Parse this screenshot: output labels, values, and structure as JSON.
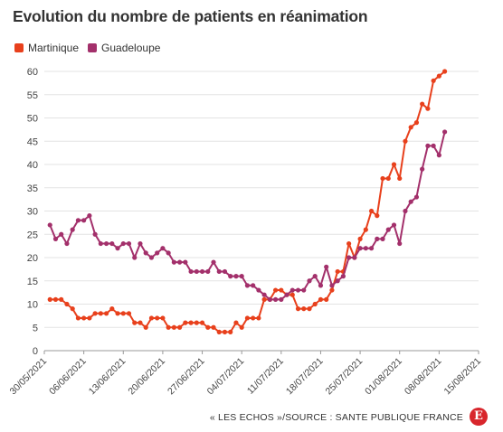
{
  "title": "Evolution du nombre de patients en réanimation",
  "source": "« LES ECHOS »/SOURCE : SANTE PUBLIQUE FRANCE",
  "logo_letter": "E",
  "chart_data": {
    "type": "line",
    "title": "Evolution du nombre de patients en réanimation",
    "xlabel": "",
    "ylabel": "",
    "ylim": [
      0,
      60
    ],
    "yticks": [
      0,
      5,
      10,
      15,
      20,
      25,
      30,
      35,
      40,
      45,
      50,
      55,
      60
    ],
    "xrange": [
      "2021-05-30",
      "2021-08-15"
    ],
    "xticks": [
      "30/05/2021",
      "06/06/2021",
      "13/06/2021",
      "20/06/2021",
      "27/06/2021",
      "04/07/2021",
      "11/07/2021",
      "18/07/2021",
      "25/07/2021",
      "01/08/2021",
      "08/08/2021",
      "15/08/2021"
    ],
    "grid": true,
    "legend_position": "top-left",
    "series": [
      {
        "name": "Martinique",
        "color": "#e8401c",
        "start_date": "2021-05-31",
        "values": [
          11,
          11,
          11,
          10,
          9,
          7,
          7,
          7,
          8,
          8,
          8,
          9,
          8,
          8,
          8,
          6,
          6,
          5,
          7,
          7,
          7,
          5,
          5,
          5,
          6,
          6,
          6,
          6,
          5,
          5,
          4,
          4,
          4,
          6,
          5,
          7,
          7,
          7,
          11,
          11,
          13,
          13,
          12,
          12,
          9,
          9,
          9,
          10,
          11,
          11,
          13,
          17,
          17,
          23,
          20,
          24,
          26,
          30,
          29,
          37,
          37,
          40,
          37,
          45,
          48,
          49,
          53,
          52,
          58,
          59,
          60
        ]
      },
      {
        "name": "Guadeloupe",
        "color": "#a3306b",
        "start_date": "2021-05-31",
        "values": [
          27,
          24,
          25,
          23,
          26,
          28,
          28,
          29,
          25,
          23,
          23,
          23,
          22,
          23,
          23,
          20,
          23,
          21,
          20,
          21,
          22,
          21,
          19,
          19,
          19,
          17,
          17,
          17,
          17,
          19,
          17,
          17,
          16,
          16,
          16,
          14,
          14,
          13,
          12,
          11,
          11,
          11,
          12,
          13,
          13,
          13,
          15,
          16,
          14,
          18,
          14,
          15,
          16,
          20,
          20,
          22,
          22,
          22,
          24,
          24,
          26,
          27,
          23,
          30,
          32,
          33,
          39,
          44,
          44,
          42,
          47
        ]
      }
    ]
  }
}
